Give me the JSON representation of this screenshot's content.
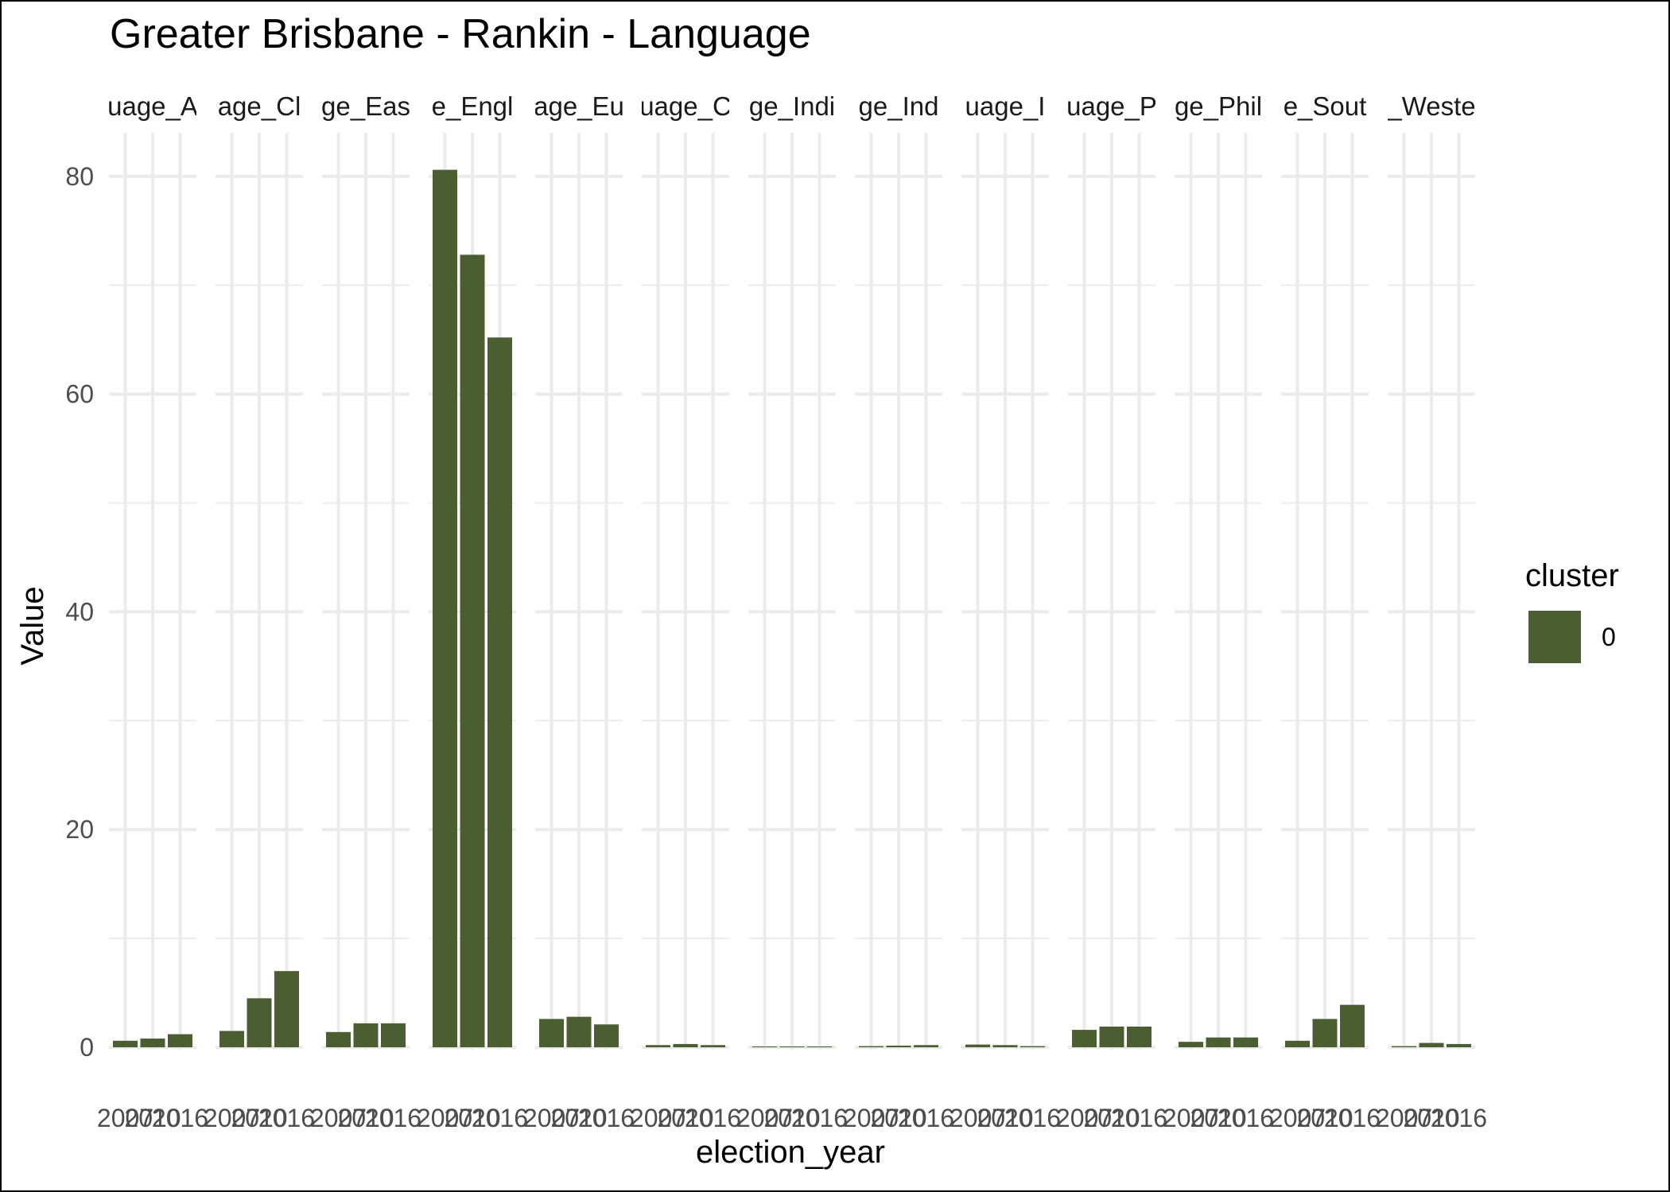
{
  "chart_data": {
    "type": "bar",
    "title": "Greater Brisbane - Rankin - Language",
    "xlabel": "election_year",
    "ylabel": "Value",
    "ylim": [
      0,
      84
    ],
    "y_ticks": [
      0,
      20,
      40,
      60,
      80
    ],
    "grid": true,
    "legend": {
      "title": "cluster",
      "position": "right",
      "entries": [
        {
          "label": "0",
          "color": "#4a5e31"
        }
      ]
    },
    "categories": [
      "2007",
      "2010",
      "2016"
    ],
    "facets": [
      {
        "label": "uage_A",
        "values": [
          0.6,
          0.8,
          1.2
        ]
      },
      {
        "label": "age_Cl",
        "values": [
          1.5,
          4.5,
          7.0
        ]
      },
      {
        "label": "ge_Eas",
        "values": [
          1.4,
          2.2,
          2.2
        ]
      },
      {
        "label": "e_Engl",
        "values": [
          80.6,
          72.8,
          65.2
        ]
      },
      {
        "label": "age_Eu",
        "values": [
          2.6,
          2.8,
          2.1
        ]
      },
      {
        "label": "uage_C",
        "values": [
          0.2,
          0.3,
          0.2
        ]
      },
      {
        "label": "ge_Indi",
        "values": [
          0.05,
          0.05,
          0.05
        ]
      },
      {
        "label": "ge_Ind",
        "values": [
          0.1,
          0.15,
          0.2
        ]
      },
      {
        "label": "uage_I",
        "values": [
          0.25,
          0.2,
          0.1
        ]
      },
      {
        "label": "uage_P",
        "values": [
          1.6,
          1.9,
          1.9
        ]
      },
      {
        "label": "ge_Phil",
        "values": [
          0.5,
          0.9,
          0.9
        ]
      },
      {
        "label": "e_Sout",
        "values": [
          0.6,
          2.6,
          3.9
        ]
      },
      {
        "label": "_Weste",
        "values": [
          0.1,
          0.4,
          0.3
        ]
      }
    ]
  },
  "colors": {
    "bar": "#4a5e31",
    "grid": "#ebebeb"
  }
}
